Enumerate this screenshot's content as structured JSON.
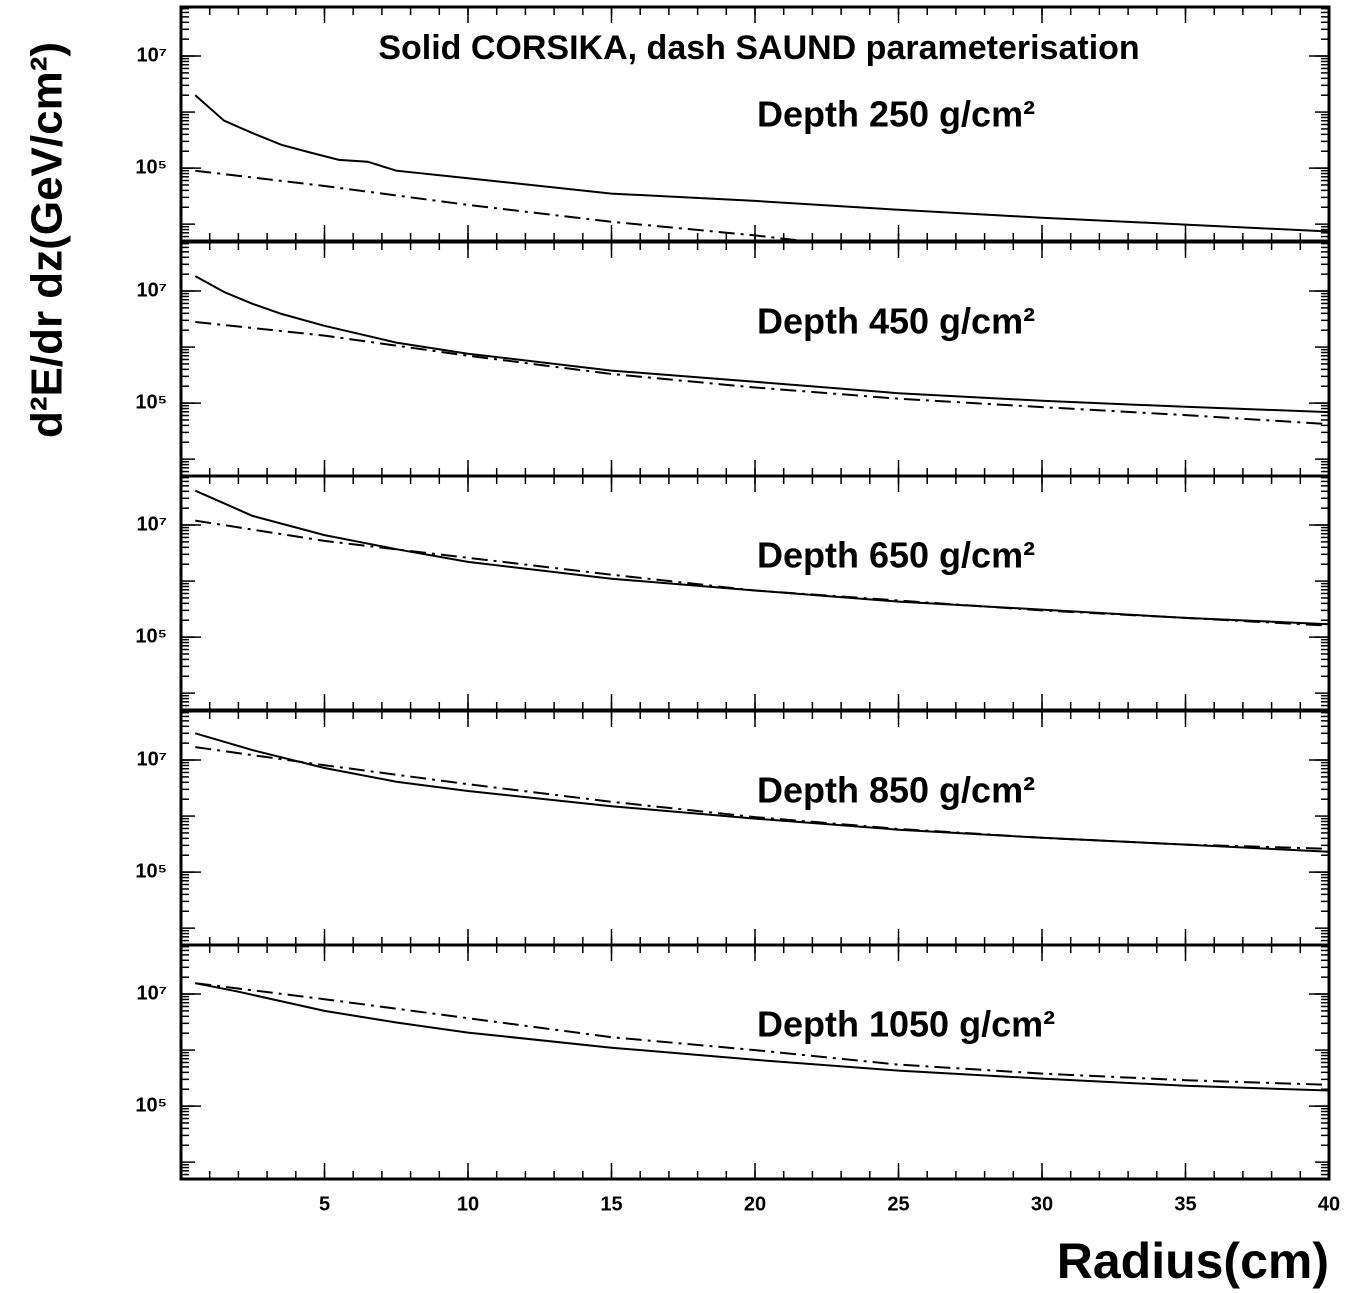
{
  "chart_data": [
    {
      "type": "line",
      "title": "Solid CORSIKA, dash SAUND parameterisation",
      "ylabel": "d²E/dr dz(GeV/cm²)",
      "annotation": "Depth 250 g/cm²",
      "log_y": true,
      "xlim": [
        0,
        40
      ],
      "xticks": [
        5,
        10,
        15,
        20,
        25,
        30,
        35,
        40
      ],
      "ylim": [
        5000,
        75000000
      ],
      "yticks": [
        {
          "value": 100000,
          "label": "10⁵"
        },
        {
          "value": 10000000,
          "label": "10⁷"
        }
      ],
      "series": [
        {
          "style": "solid",
          "color": "#000000",
          "x": [
            0.5,
            1.5,
            2.5,
            3.5,
            4.5,
            5.5,
            6.5,
            7.5,
            10,
            15,
            20,
            25,
            30,
            35,
            40
          ],
          "values": [
            2000000,
            700000,
            420000,
            260000,
            190000,
            140000,
            130000,
            90000,
            66000,
            35000,
            26000,
            18000,
            13000,
            9800,
            7400
          ]
        },
        {
          "style": "dashed",
          "color": "#000000",
          "x": [
            0.5,
            5,
            10,
            15,
            20,
            25
          ],
          "values": [
            90000,
            48000,
            22000,
            11000,
            6300,
            3200
          ]
        }
      ]
    },
    {
      "type": "line",
      "annotation": "Depth 450 g/cm²",
      "log_y": true,
      "xlim": [
        0,
        40
      ],
      "xticks": [
        5,
        10,
        15,
        20,
        25,
        30,
        35,
        40
      ],
      "ylim": [
        5000,
        75000000
      ],
      "yticks": [
        {
          "value": 100000,
          "label": "10⁵"
        },
        {
          "value": 10000000,
          "label": "10⁷"
        }
      ],
      "series": [
        {
          "style": "solid",
          "color": "#000000",
          "x": [
            0.5,
            1.5,
            2.5,
            3.5,
            5,
            7.5,
            10,
            15,
            20,
            25,
            30,
            35,
            40
          ],
          "values": [
            18500000,
            9600000,
            5900000,
            3900000,
            2400000,
            1200000,
            760000,
            380000,
            240000,
            150000,
            110000,
            86000,
            69000
          ]
        },
        {
          "style": "dashed",
          "color": "#000000",
          "x": [
            0.5,
            5,
            10,
            15,
            20,
            25,
            30,
            35,
            40
          ],
          "values": [
            2800000,
            1600000,
            700000,
            330000,
            190000,
            120000,
            85000,
            61000,
            42000
          ]
        }
      ]
    },
    {
      "type": "line",
      "annotation": "Depth 650 g/cm²",
      "log_y": true,
      "xlim": [
        0,
        40
      ],
      "xticks": [
        5,
        10,
        15,
        20,
        25,
        30,
        35,
        40
      ],
      "ylim": [
        5000,
        75000000
      ],
      "yticks": [
        {
          "value": 100000,
          "label": "10⁵"
        },
        {
          "value": 10000000,
          "label": "10⁷"
        }
      ],
      "series": [
        {
          "style": "solid",
          "color": "#000000",
          "x": [
            0.5,
            2.5,
            5,
            7.5,
            10,
            15,
            20,
            25,
            30,
            35,
            40
          ],
          "values": [
            41000000,
            14500000,
            6600000,
            3700000,
            2200000,
            1100000,
            680000,
            430000,
            310000,
            220000,
            170000
          ]
        },
        {
          "style": "dashed",
          "color": "#000000",
          "x": [
            0.5,
            5,
            10,
            15,
            20,
            25,
            30,
            35,
            40
          ],
          "values": [
            12000000,
            5200000,
            2600000,
            1300000,
            680000,
            450000,
            300000,
            220000,
            160000
          ]
        }
      ]
    },
    {
      "type": "line",
      "annotation": "Depth 850 g/cm²",
      "log_y": true,
      "xlim": [
        0,
        40
      ],
      "xticks": [
        5,
        10,
        15,
        20,
        25,
        30,
        35,
        40
      ],
      "ylim": [
        5000,
        75000000
      ],
      "yticks": [
        {
          "value": 100000,
          "label": "10⁵"
        },
        {
          "value": 10000000,
          "label": "10⁷"
        }
      ],
      "series": [
        {
          "style": "solid",
          "color": "#000000",
          "x": [
            0.5,
            2.5,
            5,
            7.5,
            10,
            15,
            20,
            25,
            30,
            35,
            40
          ],
          "values": [
            30000000,
            15000000,
            7200000,
            4100000,
            2800000,
            1500000,
            900000,
            570000,
            410000,
            310000,
            230000
          ]
        },
        {
          "style": "dashed",
          "color": "#000000",
          "x": [
            0.5,
            5,
            10,
            15,
            20,
            25,
            30,
            35,
            40
          ],
          "values": [
            17000000,
            8100000,
            3700000,
            1800000,
            960000,
            590000,
            410000,
            310000,
            260000
          ]
        }
      ]
    },
    {
      "type": "line",
      "annotation": "Depth 1050 g/cm²",
      "xlabel": "Radius(cm)",
      "log_y": true,
      "xlim": [
        0,
        40
      ],
      "xticks": [
        5,
        10,
        15,
        20,
        25,
        30,
        35,
        40
      ],
      "ylim": [
        5000,
        75000000
      ],
      "yticks": [
        {
          "value": 100000,
          "label": "10⁵"
        },
        {
          "value": 10000000,
          "label": "10⁷"
        }
      ],
      "series": [
        {
          "style": "solid",
          "color": "#000000",
          "x": [
            0.5,
            2,
            5,
            7.5,
            10,
            15,
            20,
            25,
            30,
            35,
            40
          ],
          "values": [
            15600000,
            11000000,
            5000000,
            3100000,
            2050000,
            1100000,
            670000,
            430000,
            310000,
            230000,
            190000
          ]
        },
        {
          "style": "dashed",
          "color": "#000000",
          "x": [
            0.5,
            5,
            10,
            15,
            20,
            25,
            30,
            35,
            40
          ],
          "values": [
            15600000,
            8100000,
            3700000,
            1700000,
            1000000,
            550000,
            380000,
            290000,
            240000
          ]
        }
      ]
    }
  ]
}
